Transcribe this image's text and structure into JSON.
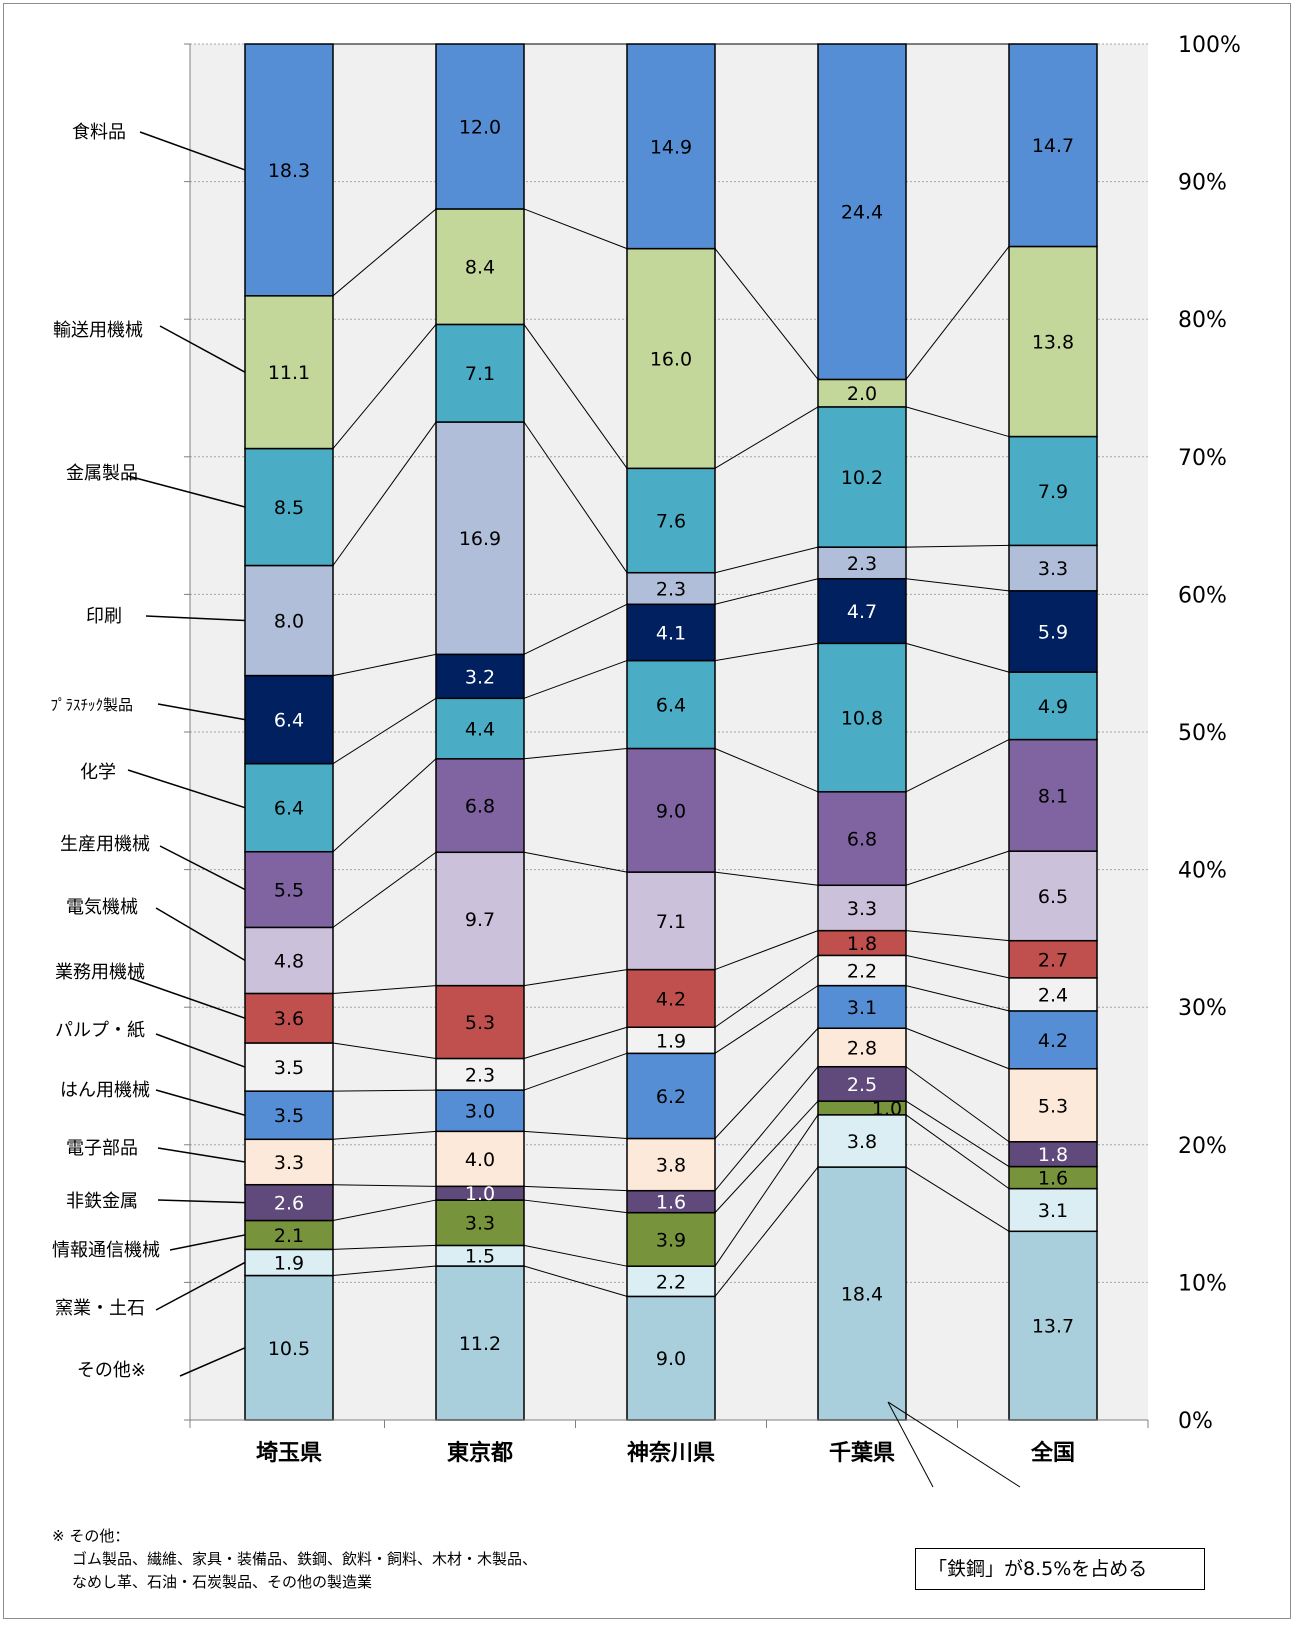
{
  "chart_data": {
    "type": "stacked-bar-100",
    "categories": [
      "埼玉県",
      "東京都",
      "神奈川県",
      "千葉県",
      "全国"
    ],
    "series": [
      {
        "name": "その他※",
        "values": [
          10.5,
          11.2,
          9.0,
          18.4,
          13.7
        ],
        "color": "#a9cfdd"
      },
      {
        "name": "窯業・土石",
        "values": [
          1.9,
          1.5,
          2.2,
          3.8,
          3.1
        ],
        "color": "#dbeef4"
      },
      {
        "name": "情報通信機械",
        "values": [
          2.1,
          3.3,
          3.9,
          1.0,
          1.6
        ],
        "color": "#77933c"
      },
      {
        "name": "非鉄金属",
        "values": [
          2.6,
          1.0,
          1.6,
          2.5,
          1.8
        ],
        "color": "#604a7b"
      },
      {
        "name": "電子部品",
        "values": [
          3.3,
          4.0,
          3.8,
          2.8,
          5.3
        ],
        "color": "#fde9d9"
      },
      {
        "name": "はん用機械",
        "values": [
          3.5,
          3.0,
          6.2,
          3.1,
          4.2
        ],
        "color": "#558ed5"
      },
      {
        "name": "パルプ・紙",
        "values": [
          3.5,
          2.3,
          1.9,
          2.2,
          2.4
        ],
        "color": "#f2f2f2"
      },
      {
        "name": "業務用機械",
        "values": [
          3.6,
          5.3,
          4.2,
          1.8,
          2.7
        ],
        "color": "#c0504d"
      },
      {
        "name": "電気機械",
        "values": [
          4.8,
          9.7,
          7.1,
          3.3,
          6.5
        ],
        "color": "#ccc1da"
      },
      {
        "name": "生産用機械",
        "values": [
          5.5,
          6.8,
          9.0,
          6.8,
          8.1
        ],
        "color": "#8064a2"
      },
      {
        "name": "化学",
        "values": [
          6.4,
          4.4,
          6.4,
          10.8,
          4.9
        ],
        "color": "#4bacc6"
      },
      {
        "name": "ﾌﾟﾗｽﾁｯｸ製品",
        "values": [
          6.4,
          3.2,
          4.1,
          4.7,
          5.9
        ],
        "color": "#002060"
      },
      {
        "name": "印刷",
        "values": [
          8.0,
          16.9,
          2.3,
          2.3,
          3.3
        ],
        "color": "#b0bed9"
      },
      {
        "name": "金属製品",
        "values": [
          8.5,
          7.1,
          7.6,
          10.2,
          7.9
        ],
        "color": "#4bacc6"
      },
      {
        "name": "輸送用機械",
        "values": [
          11.1,
          8.4,
          16.0,
          2.0,
          13.8
        ],
        "color": "#c4d79b"
      },
      {
        "name": "食料品",
        "values": [
          18.3,
          12.0,
          14.9,
          24.4,
          14.7
        ],
        "color": "#558ed5"
      }
    ],
    "display_values": [
      [
        "10.5",
        "1.9",
        "2.1",
        "2.6",
        "3.3",
        "3.5",
        "3.5",
        "3.6",
        "4.8",
        "5.5",
        "6.4",
        "6.4",
        "8.0",
        "8.5",
        "11.1",
        "18.3"
      ],
      [
        "11.2",
        "1.5",
        "3.3",
        "1.0",
        "4.0",
        "3.0",
        "2.3",
        "5.3",
        "9.7",
        "6.8",
        "4.4",
        "3.2",
        "16.9",
        "7.1",
        "8.4",
        "12.0"
      ],
      [
        "9.0",
        "2.2",
        "3.9",
        "1.6",
        "3.8",
        "6.2",
        "1.9",
        "4.2",
        "7.1",
        "9.0",
        "6.4",
        "4.1",
        "2.3",
        "7.6",
        "16.0",
        "14.9"
      ],
      [
        "18.4",
        "3.8",
        "1.0",
        "2.5",
        "2.8",
        "3.1",
        "2.2",
        "1.8",
        "3.3",
        "6.8",
        "10.8",
        "4.7",
        "2.3",
        "10.2",
        "2.0",
        "24.4"
      ],
      [
        "13.7",
        "3.1",
        "1.6",
        "1.8",
        "5.3",
        "4.2",
        "2.4",
        "2.7",
        "6.5",
        "8.1",
        "4.9",
        "5.9",
        "3.3",
        "7.9",
        "13.8",
        "14.7"
      ]
    ],
    "y_ticks": [
      "0%",
      "10%",
      "20%",
      "30%",
      "40%",
      "50%",
      "60%",
      "70%",
      "80%",
      "90%",
      "100%"
    ],
    "ylim": [
      0,
      100
    ],
    "grid": true,
    "legend": "left, with leader lines to first bar"
  },
  "note": {
    "heading": "※ その他：",
    "line1": "ゴム製品、繊維、家具・装備品、鉄鋼、飲料・飼料、木材・木製品、",
    "line2": "なめし革、石油・石炭製品、その他の製造業"
  },
  "callout": {
    "text": "「鉄鋼」が8.5%を占める"
  }
}
